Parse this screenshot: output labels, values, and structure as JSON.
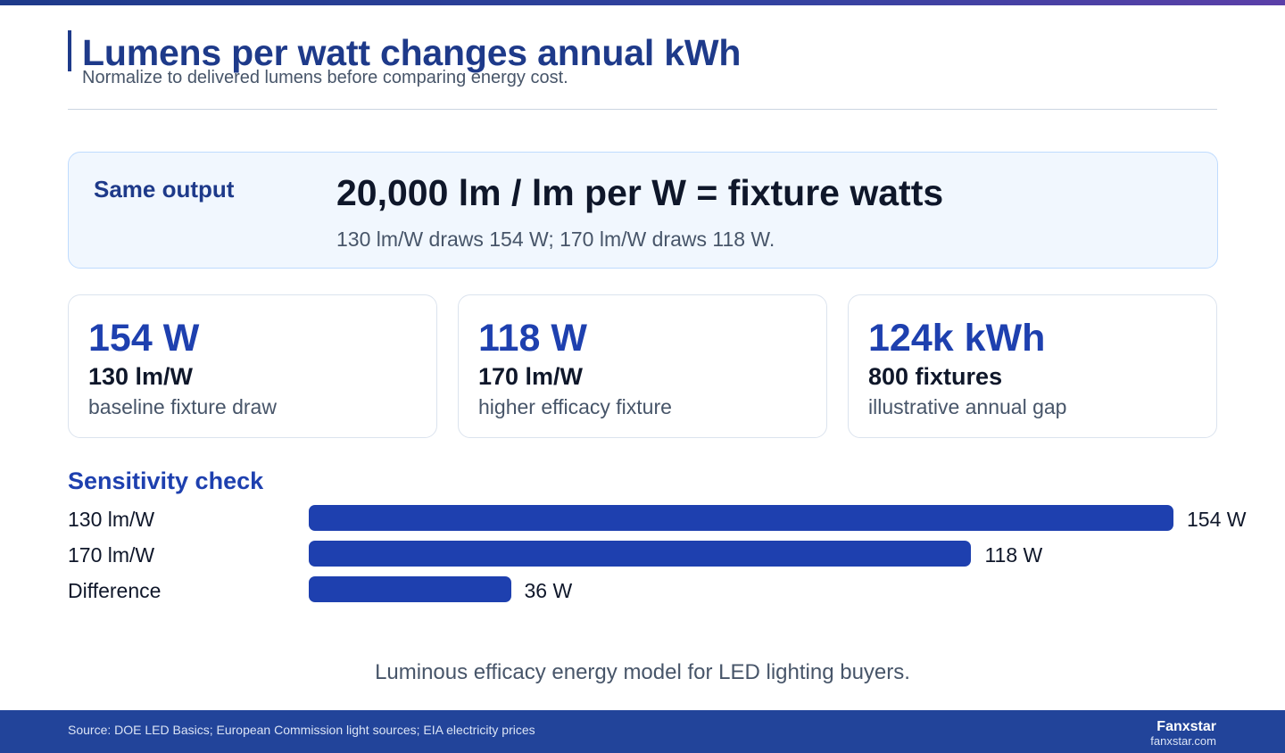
{
  "header": {
    "title": "Lumens per watt changes annual kWh",
    "subtitle": "Normalize to delivered lumens before comparing energy cost."
  },
  "formula": {
    "label": "Same output",
    "equation": "20,000 lm / lm per W = fixture watts",
    "note": "130 lm/W draws 154 W; 170 lm/W draws 118 W."
  },
  "stats": [
    {
      "value": "154 W",
      "label": "130 lm/W",
      "description": "baseline fixture draw"
    },
    {
      "value": "118 W",
      "label": "170 lm/W",
      "description": "higher efficacy fixture"
    },
    {
      "value": "124k kWh",
      "label": "800 fixtures",
      "description": "illustrative annual gap"
    }
  ],
  "sensitivity": {
    "title": "Sensitivity check",
    "max": 154,
    "rows": [
      {
        "label": "130 lm/W",
        "value": 154,
        "value_label": "154 W"
      },
      {
        "label": "170 lm/W",
        "value": 118,
        "value_label": "118 W"
      },
      {
        "label": "Difference",
        "value": 36,
        "value_label": "36 W"
      }
    ]
  },
  "caption": "Luminous efficacy energy model for LED lighting buyers.",
  "footer": {
    "source": "Source: DOE LED Basics; European Commission light sources; EIA electricity prices",
    "brand": "Fanxstar",
    "url": "fanxstar.com"
  },
  "colors": {
    "accent": "#1e40af",
    "title": "#1e3a8a",
    "footer": "#22449a"
  }
}
